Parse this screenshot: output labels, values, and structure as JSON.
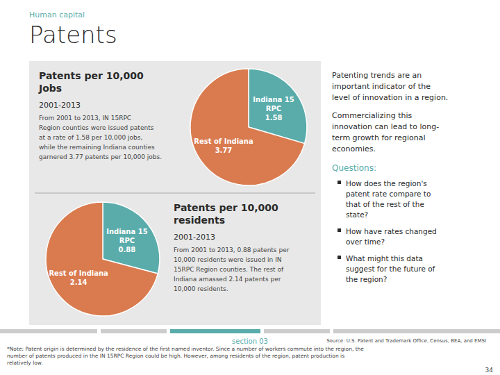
{
  "title": "Patents",
  "subtitle": "Human capital",
  "annotations": [
    "Patenting trends are an\nimportant indicator of the\nlevel of innovation in a region.",
    "Commercializing this\ninnovation can lead to long-\nterm growth for regional\neconomies.",
    "Questions:",
    "How does the region's\npatent rate compare to\nthat of the rest of the\nstate?",
    "How have rates changed\nover time?",
    "What might this data\nsuggest for the future of\nthe region?",
    "section 03",
    "Source: U.S. Patent and Trademark Office, Census, BEA, and EMSI",
    "*Note: Patent origin is determined by the residence of the first named inventor. Since a number of workers commute into the region, the\nnumber of patents produced in the IN 15RPC Region could be high. However, among residents of the region, patent production is\nrelatively low.",
    "34"
  ],
  "chart_data": [
    {
      "type": "pie",
      "title": "Patents per 10,000\nJobs",
      "subtitle": "2001-2013",
      "annotations": [
        "From 2001 to 2013, IN 15RPC\nRegion counties were issued patents\nat a rate of 1.58 per 10,000 jobs,\nwhile the remaining Indiana counties\ngarnered 3.77 patents per 10,000 jobs."
      ],
      "categories": [
        "Indiana 15\nRPC",
        "Rest of Indiana"
      ],
      "values": [
        1.58,
        3.77
      ],
      "colors": [
        "#5AACAB",
        "#D97B4F"
      ],
      "data_labels": true
    },
    {
      "type": "pie",
      "title": "Patents per 10,000\nresidents",
      "subtitle": "2001-2013",
      "annotations": [
        "From 2001 to 2013, 0.88 patents per\n10,000 residents were issued in IN\n15RPC Region counties. The rest of\nIndiana amassed 2.14 patents per\n10,000 residents."
      ],
      "categories": [
        "Indiana 15\nRPC",
        "Rest of Indiana"
      ],
      "values": [
        0.88,
        2.14
      ],
      "colors": [
        "#5AACAB",
        "#D97B4F"
      ],
      "data_labels": true
    }
  ]
}
